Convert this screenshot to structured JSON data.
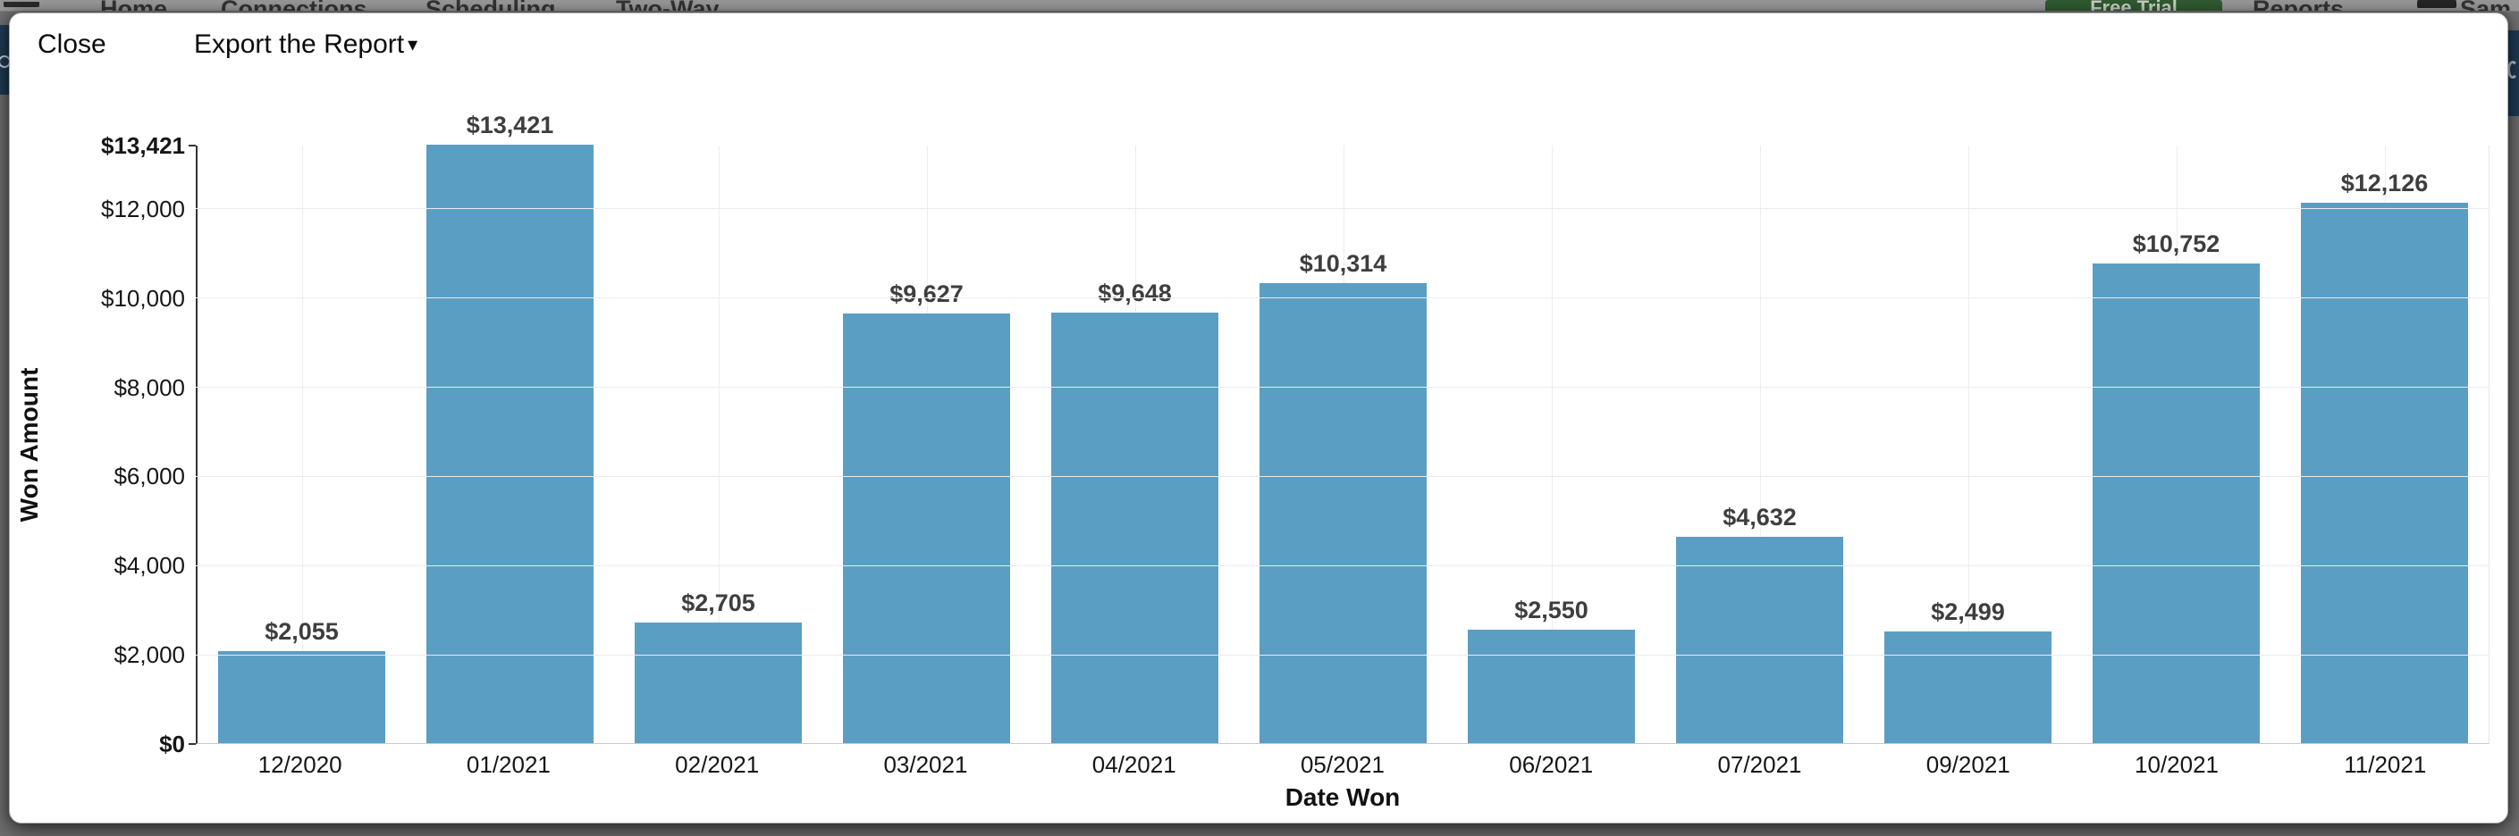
{
  "nav": {
    "items": [
      "Home",
      "Connections",
      "Scheduling",
      "Two-Way"
    ],
    "trial_button_label": "Free Trial",
    "reports_label": "Reports",
    "user_fragment": "Sam"
  },
  "toolbar": {
    "close_label": "Close",
    "export_label": "Export the Report",
    "caret_icon": "▾"
  },
  "colors": {
    "bar": "#5B9EC3",
    "backdrop": "#6F6F6F",
    "navy_accent": "#1E3C55",
    "trial_green": "#315B31",
    "data_label": "#3E3E3E"
  },
  "chart_data": {
    "type": "bar",
    "title": "",
    "categories": [
      "12/2020",
      "01/2021",
      "02/2021",
      "03/2021",
      "04/2021",
      "05/2021",
      "06/2021",
      "07/2021",
      "09/2021",
      "10/2021",
      "11/2021"
    ],
    "values": [
      2055,
      13421,
      2705,
      9627,
      9648,
      10314,
      2550,
      4632,
      2499,
      10752,
      12126
    ],
    "data_labels": [
      "$2,055",
      "$13,421",
      "$2,705",
      "$9,627",
      "$9,648",
      "$10,314",
      "$2,550",
      "$4,632",
      "$2,499",
      "$10,752",
      "$12,126"
    ],
    "xlabel": "Date Won",
    "ylabel": "Won Amount",
    "ylim": [
      0,
      13421
    ],
    "yticks": [
      {
        "value": 0,
        "label": "$0",
        "bold": true
      },
      {
        "value": 2000,
        "label": "$2,000",
        "bold": false
      },
      {
        "value": 4000,
        "label": "$4,000",
        "bold": false
      },
      {
        "value": 6000,
        "label": "$6,000",
        "bold": false
      },
      {
        "value": 8000,
        "label": "$8,000",
        "bold": false
      },
      {
        "value": 10000,
        "label": "$10,000",
        "bold": false
      },
      {
        "value": 12000,
        "label": "$12,000",
        "bold": false
      },
      {
        "value": 13421,
        "label": "$13,421",
        "bold": true
      }
    ],
    "grid": true,
    "legend": false,
    "bar_color": "#5B9EC3"
  }
}
